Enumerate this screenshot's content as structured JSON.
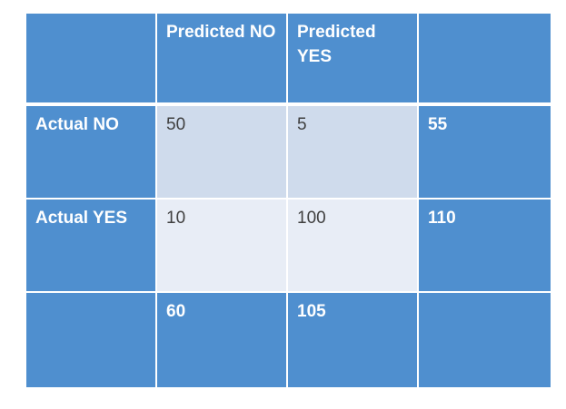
{
  "table": {
    "header": [
      "",
      "Predicted NO",
      "Predicted YES",
      ""
    ],
    "rows": [
      {
        "label": "Actual NO",
        "values": [
          "50",
          "5",
          "55"
        ]
      },
      {
        "label": "Actual YES",
        "values": [
          "10",
          "100",
          "110"
        ]
      }
    ],
    "totals": [
      "",
      "60",
      "105",
      ""
    ]
  },
  "colors": {
    "header_blue": "#4f8fcf",
    "row1_fill": "#cfdbec",
    "row2_fill": "#e8edf6",
    "body_text": "#404040",
    "header_text": "#ffffff"
  }
}
